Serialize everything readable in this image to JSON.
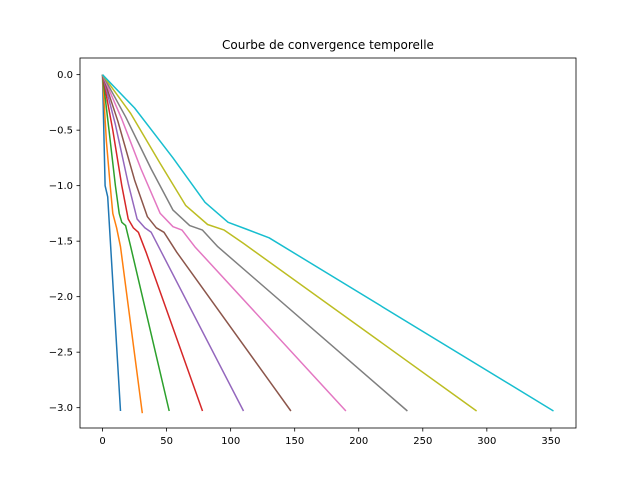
{
  "chart_data": {
    "type": "line",
    "title": "Courbe de convergence temporelle",
    "xlabel": "",
    "ylabel": "",
    "xlim": [
      -17.6,
      369.6
    ],
    "ylim": [
      -3.183,
      0.15
    ],
    "xticks": [
      0,
      50,
      100,
      150,
      200,
      250,
      300,
      350
    ],
    "xtick_labels": [
      "0",
      "50",
      "100",
      "150",
      "200",
      "250",
      "300",
      "350"
    ],
    "yticks": [
      0.0,
      -0.5,
      -1.0,
      -1.5,
      -2.0,
      -2.5,
      -3.0
    ],
    "ytick_labels": [
      "0.0",
      "−0.5",
      "−1.0",
      "−1.5",
      "−2.0",
      "−2.5",
      "−3.0"
    ],
    "grid": false,
    "legend": "none",
    "series": [
      {
        "color": "#1f77b4",
        "x": [
          0,
          2,
          4,
          14
        ],
        "y": [
          0,
          -1.0,
          -1.1,
          -3.03
        ]
      },
      {
        "color": "#ff7f0e",
        "x": [
          0,
          3,
          6,
          8,
          11,
          14,
          31
        ],
        "y": [
          0,
          -0.6,
          -1.0,
          -1.25,
          -1.38,
          -1.55,
          -3.05
        ]
      },
      {
        "color": "#2ca02c",
        "x": [
          0,
          5,
          10,
          13,
          15,
          18,
          22,
          52
        ],
        "y": [
          0,
          -0.5,
          -1.0,
          -1.25,
          -1.33,
          -1.36,
          -1.55,
          -3.03
        ]
      },
      {
        "color": "#d62728",
        "x": [
          0,
          8,
          15,
          20,
          24,
          28,
          34,
          78
        ],
        "y": [
          0,
          -0.5,
          -1.0,
          -1.3,
          -1.38,
          -1.42,
          -1.6,
          -3.03
        ]
      },
      {
        "color": "#9467bd",
        "x": [
          0,
          10,
          20,
          27,
          33,
          38,
          46,
          110
        ],
        "y": [
          0,
          -0.45,
          -0.98,
          -1.3,
          -1.38,
          -1.42,
          -1.6,
          -3.03
        ]
      },
      {
        "color": "#8c564b",
        "x": [
          0,
          12,
          25,
          35,
          42,
          48,
          58,
          147
        ],
        "y": [
          0,
          -0.42,
          -0.95,
          -1.28,
          -1.38,
          -1.42,
          -1.6,
          -3.03
        ]
      },
      {
        "color": "#e377c2",
        "x": [
          0,
          15,
          30,
          45,
          55,
          62,
          72,
          190
        ],
        "y": [
          0,
          -0.4,
          -0.85,
          -1.25,
          -1.37,
          -1.4,
          -1.55,
          -3.03
        ]
      },
      {
        "color": "#7f7f7f",
        "x": [
          0,
          18,
          38,
          55,
          68,
          78,
          90,
          238
        ],
        "y": [
          0,
          -0.38,
          -0.85,
          -1.22,
          -1.36,
          -1.4,
          -1.55,
          -3.03
        ]
      },
      {
        "color": "#bcbd22",
        "x": [
          0,
          22,
          45,
          65,
          82,
          95,
          110,
          292
        ],
        "y": [
          0,
          -0.35,
          -0.8,
          -1.18,
          -1.35,
          -1.4,
          -1.52,
          -3.03
        ]
      },
      {
        "color": "#17becf",
        "x": [
          0,
          25,
          55,
          80,
          98,
          112,
          130,
          352
        ],
        "y": [
          0,
          -0.3,
          -0.75,
          -1.15,
          -1.33,
          -1.39,
          -1.47,
          -3.03
        ]
      }
    ]
  }
}
